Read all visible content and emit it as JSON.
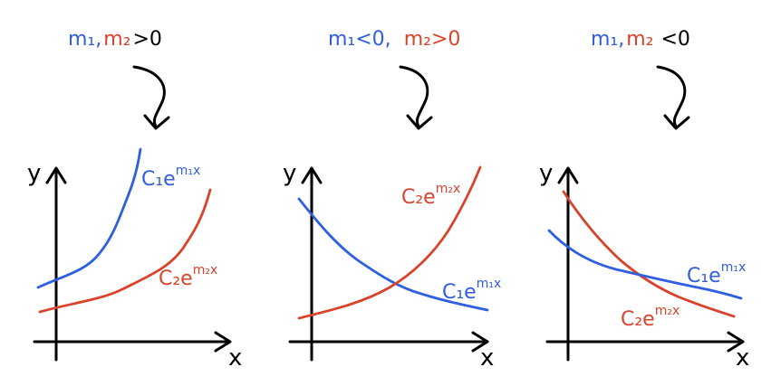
{
  "colors": {
    "m1": "#2f5fe0",
    "m2": "#d9432b",
    "ink": "#000000"
  },
  "panels": [
    {
      "condition": {
        "m1_part": "m₁,",
        "m2_part": "m₂",
        "rest": ">0"
      },
      "curve1_label": {
        "base": "C₁e",
        "sup": "m₁x"
      },
      "curve2_label": {
        "base": "C₂e",
        "sup": "m₂x"
      },
      "y_axis_label": "y",
      "x_axis_label": "x"
    },
    {
      "condition": {
        "m1_part": "m₁<0,",
        "m2_part": "m₂>0",
        "rest": ""
      },
      "curve1_label": {
        "base": "C₁e",
        "sup": "m₁x"
      },
      "curve2_label": {
        "base": "C₂e",
        "sup": "m₂x"
      },
      "y_axis_label": "y",
      "x_axis_label": "x"
    },
    {
      "condition": {
        "m1_part": "m₁,",
        "m2_part": "m₂",
        "rest": "<0"
      },
      "curve1_label": {
        "base": "C₁e",
        "sup": "m₁x"
      },
      "curve2_label": {
        "base": "C₂e",
        "sup": "m₂x"
      },
      "y_axis_label": "y",
      "x_axis_label": "x"
    }
  ]
}
